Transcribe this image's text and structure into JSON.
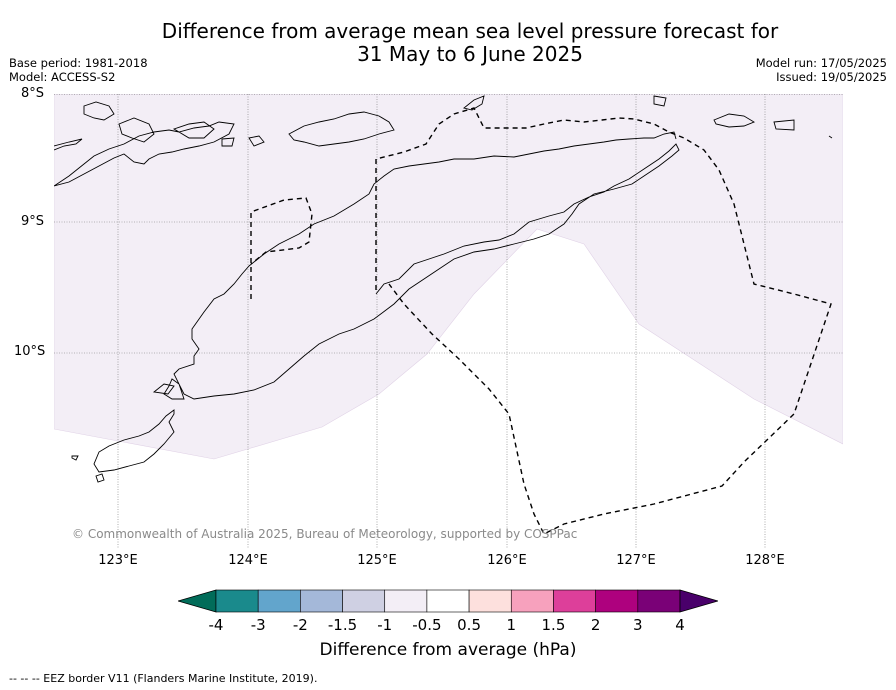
{
  "title": {
    "line1": "Difference from average mean sea level pressure forecast for",
    "line2": "31 May to 6 June 2025"
  },
  "meta": {
    "base_period": "Base period: 1981-2018",
    "model": "Model: ACCESS-S2",
    "model_run": "Model run: 17/05/2025",
    "issued": "Issued: 19/05/2025"
  },
  "map": {
    "lat_labels": [
      "8°S",
      "9°S",
      "10°S"
    ],
    "lon_labels": [
      "123°E",
      "124°E",
      "125°E",
      "126°E",
      "127°E",
      "128°E"
    ],
    "copyright": "© Commonwealth of Australia 2025, Bureau of Meteorology, supported by COSPPac",
    "fill_color": "#f3eef6",
    "land_outline_color": "#000000",
    "eez_style": "dashed"
  },
  "colorbar": {
    "label": "Difference from average (hPa)",
    "ticks": [
      "-4",
      "-3",
      "-2",
      "-1.5",
      "-1",
      "-0.5",
      "0.5",
      "1",
      "1.5",
      "2",
      "3",
      "4"
    ],
    "colors": [
      "#1a8a8c",
      "#62a5cc",
      "#a4b8d9",
      "#cfd0e3",
      "#f3eef6",
      "#ffffff",
      "#fde0dd",
      "#f7a1bd",
      "#dd3f9a",
      "#ae017e",
      "#7a0177"
    ],
    "under_color": "#016c59",
    "over_color": "#49006a"
  },
  "footnote": "--  --  -- EEZ border V11 (Flanders Marine Institute, 2019)."
}
